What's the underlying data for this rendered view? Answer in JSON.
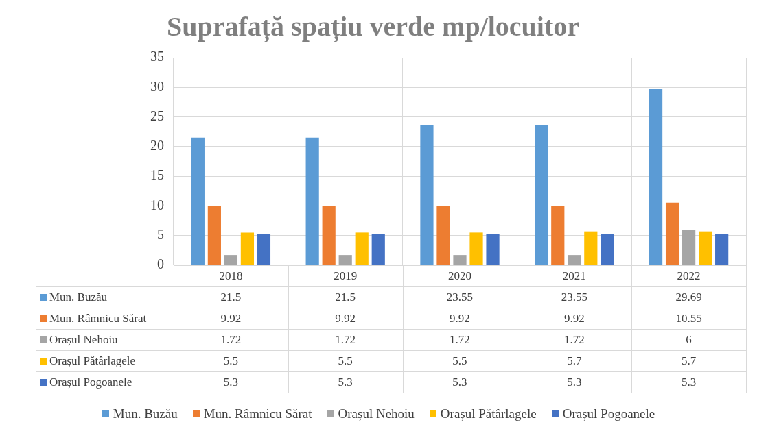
{
  "chart_data": {
    "type": "bar",
    "title": "Suprafață spațiu verde mp/locuitor",
    "categories": [
      "2018",
      "2019",
      "2020",
      "2021",
      "2022"
    ],
    "series": [
      {
        "name": "Mun. Buzău",
        "color": "#5b9bd5",
        "values": [
          21.5,
          21.5,
          23.55,
          23.55,
          29.69
        ]
      },
      {
        "name": "Mun. Râmnicu Sărat",
        "color": "#ed7d31",
        "values": [
          9.92,
          9.92,
          9.92,
          9.92,
          10.55
        ]
      },
      {
        "name": "Orașul Nehoiu",
        "color": "#a5a5a5",
        "values": [
          1.72,
          1.72,
          1.72,
          1.72,
          6
        ]
      },
      {
        "name": "Orașul Pătârlagele",
        "color": "#ffc000",
        "values": [
          5.5,
          5.5,
          5.5,
          5.7,
          5.7
        ]
      },
      {
        "name": "Orașul Pogoanele",
        "color": "#4472c4",
        "values": [
          5.3,
          5.3,
          5.3,
          5.3,
          5.3
        ]
      }
    ],
    "ylim": [
      0,
      35
    ],
    "yticks": [
      0,
      5,
      10,
      15,
      20,
      25,
      30,
      35
    ],
    "grid": true,
    "legend": "bottom",
    "data_labels": true
  }
}
